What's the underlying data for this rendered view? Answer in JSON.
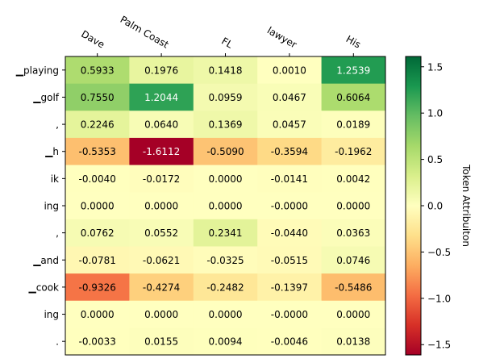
{
  "chart_data": {
    "type": "heatmap",
    "x_labels": [
      "Dave",
      "Palm Coast",
      "FL",
      "lawyer",
      "His"
    ],
    "y_labels": [
      "▁playing",
      "▁golf",
      ",",
      "▁h",
      "ik",
      "ing",
      ",",
      "▁and",
      "▁cook",
      "ing",
      "."
    ],
    "values": [
      [
        0.5933,
        0.1976,
        0.1418,
        0.001,
        1.2539
      ],
      [
        0.755,
        1.2044,
        0.0959,
        0.0467,
        0.6064
      ],
      [
        0.2246,
        0.064,
        0.1369,
        0.0457,
        0.0189
      ],
      [
        -0.5353,
        -1.6112,
        -0.509,
        -0.3594,
        -0.1962
      ],
      [
        -0.004,
        -0.0172,
        0.0,
        -0.0141,
        0.0042
      ],
      [
        0.0,
        0.0,
        0.0,
        -0.0,
        0.0
      ],
      [
        0.0762,
        0.0552,
        0.2341,
        -0.044,
        0.0363
      ],
      [
        -0.0781,
        -0.0621,
        -0.0325,
        -0.0515,
        0.0746
      ],
      [
        -0.9326,
        -0.4274,
        -0.2482,
        -0.1397,
        -0.5486
      ],
      [
        0.0,
        0.0,
        0.0,
        -0.0,
        0.0
      ],
      [
        -0.0033,
        0.0155,
        0.0094,
        -0.0046,
        0.0138
      ]
    ],
    "cell_labels": [
      [
        "0.5933",
        "0.1976",
        "0.1418",
        "0.0010",
        "1.2539"
      ],
      [
        "0.7550",
        "1.2044",
        "0.0959",
        "0.0467",
        "0.6064"
      ],
      [
        "0.2246",
        "0.0640",
        "0.1369",
        "0.0457",
        "0.0189"
      ],
      [
        "-0.5353",
        "-1.6112",
        "-0.5090",
        "-0.3594",
        "-0.1962"
      ],
      [
        "-0.0040",
        "-0.0172",
        "0.0000",
        "-0.0141",
        "0.0042"
      ],
      [
        "0.0000",
        "0.0000",
        "0.0000",
        "-0.0000",
        "0.0000"
      ],
      [
        "0.0762",
        "0.0552",
        "0.2341",
        "-0.0440",
        "0.0363"
      ],
      [
        "-0.0781",
        "-0.0621",
        "-0.0325",
        "-0.0515",
        "0.0746"
      ],
      [
        "-0.9326",
        "-0.4274",
        "-0.2482",
        "-0.1397",
        "-0.5486"
      ],
      [
        "0.0000",
        "0.0000",
        "0.0000",
        "-0.0000",
        "0.0000"
      ],
      [
        "-0.0033",
        "0.0155",
        "0.0094",
        "-0.0046",
        "0.0138"
      ]
    ],
    "colormap": "RdYlGn",
    "vmin": -1.6112,
    "vmax": 1.6112,
    "colorbar": {
      "label": "Token Attribuiton",
      "ticks": [
        1.5,
        1.0,
        0.5,
        0.0,
        -0.5,
        -1.0,
        -1.5
      ],
      "tick_labels": [
        "1.5",
        "1.0",
        "0.5",
        "0.0",
        "−0.5",
        "−1.0",
        "−1.5"
      ]
    },
    "x_label_position": "top",
    "grid": false
  }
}
